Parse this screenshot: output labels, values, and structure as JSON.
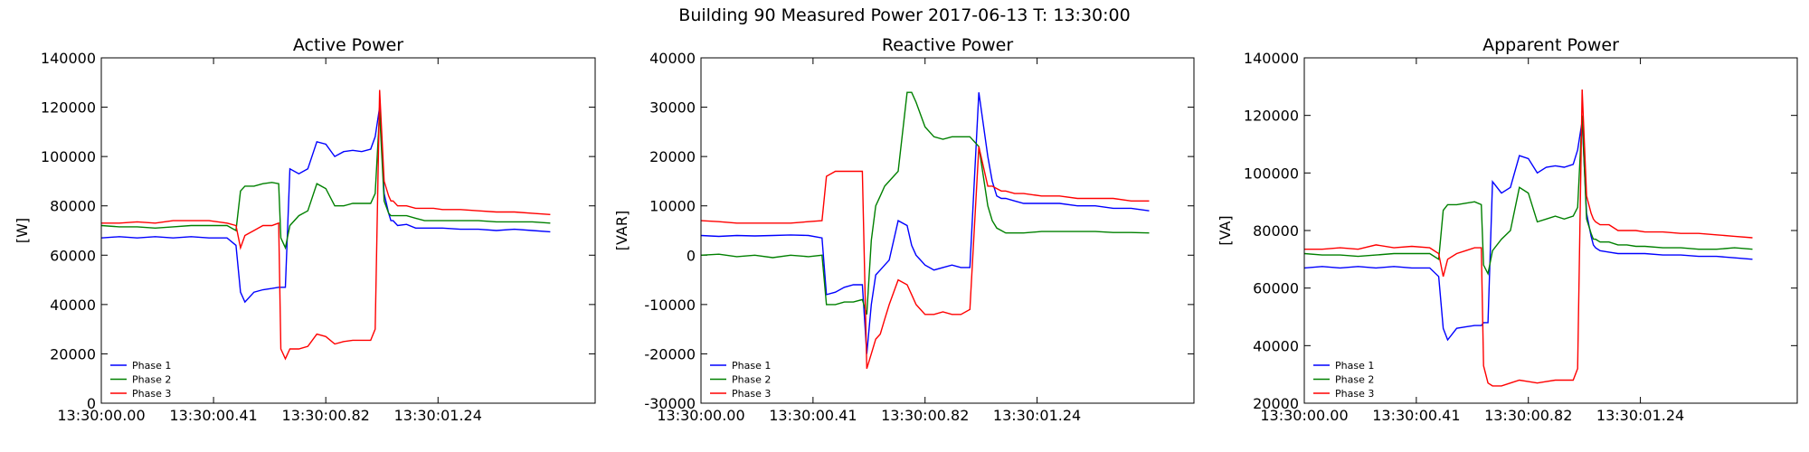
{
  "figure": {
    "title": "Building 90 Measured Power 2017-06-13 T: 13:30:00"
  },
  "chart_data": [
    {
      "type": "line",
      "title": "Active Power",
      "ylabel": "[W]",
      "xlabel": "",
      "ylim": [
        0,
        140000
      ],
      "yticks": [
        0,
        20000,
        40000,
        60000,
        80000,
        100000,
        120000,
        140000
      ],
      "xlim": [
        0,
        1.1
      ],
      "xticks": [
        0,
        0.25,
        0.5,
        0.75
      ],
      "xtick_labels": [
        "13:30:00.00",
        "13:30:00.41",
        "13:30:00.82",
        "13:30:01.24"
      ],
      "legend": "lower-left",
      "grid": false,
      "x": [
        0,
        0.04,
        0.08,
        0.12,
        0.16,
        0.2,
        0.24,
        0.28,
        0.3,
        0.31,
        0.32,
        0.34,
        0.36,
        0.38,
        0.395,
        0.4,
        0.41,
        0.42,
        0.44,
        0.46,
        0.48,
        0.5,
        0.52,
        0.54,
        0.56,
        0.58,
        0.6,
        0.61,
        0.62,
        0.63,
        0.64,
        0.645,
        0.65,
        0.66,
        0.68,
        0.7,
        0.72,
        0.74,
        0.76,
        0.8,
        0.84,
        0.88,
        0.92,
        0.96,
        1.0
      ],
      "series": [
        {
          "name": "Phase 1",
          "color": "#0000ff",
          "values": [
            67000,
            67500,
            67000,
            67500,
            67000,
            67500,
            67000,
            67000,
            64000,
            45000,
            41000,
            45000,
            46000,
            46500,
            47000,
            47000,
            47000,
            95000,
            93000,
            95000,
            106000,
            105000,
            100000,
            102000,
            102500,
            102000,
            103000,
            108000,
            120000,
            85000,
            77000,
            74000,
            74000,
            72000,
            72500,
            71000,
            71000,
            71000,
            71000,
            70500,
            70500,
            70000,
            70500,
            70000,
            69500
          ]
        },
        {
          "name": "Phase 2",
          "color": "#008000",
          "values": [
            72000,
            71500,
            71500,
            71000,
            71500,
            72000,
            72000,
            72000,
            70000,
            86000,
            88000,
            88000,
            89000,
            89500,
            89000,
            67000,
            63000,
            72000,
            76000,
            78000,
            89000,
            87000,
            80000,
            80000,
            81000,
            81000,
            81000,
            85000,
            118000,
            82000,
            77000,
            76000,
            76000,
            76000,
            76000,
            75000,
            74000,
            74000,
            74000,
            74000,
            74000,
            73500,
            73500,
            73500,
            73000
          ]
        },
        {
          "name": "Phase 3",
          "color": "#ff0000",
          "values": [
            73000,
            73000,
            73500,
            73000,
            74000,
            74000,
            74000,
            73000,
            72000,
            63000,
            68000,
            70000,
            72000,
            72000,
            73000,
            22000,
            18000,
            22000,
            22000,
            23000,
            28000,
            27000,
            24000,
            25000,
            25500,
            25500,
            25500,
            30000,
            127000,
            90000,
            84000,
            82000,
            82000,
            80000,
            80000,
            79000,
            79000,
            79000,
            78500,
            78500,
            78000,
            77500,
            77500,
            77000,
            76500
          ]
        }
      ]
    },
    {
      "type": "line",
      "title": "Reactive Power",
      "ylabel": "[VAR]",
      "xlabel": "",
      "ylim": [
        -30000,
        40000
      ],
      "yticks": [
        -30000,
        -20000,
        -10000,
        0,
        10000,
        20000,
        30000,
        40000
      ],
      "xlim": [
        0,
        1.1
      ],
      "xticks": [
        0,
        0.25,
        0.5,
        0.75
      ],
      "xtick_labels": [
        "13:30:00.00",
        "13:30:00.41",
        "13:30:00.82",
        "13:30:01.24"
      ],
      "legend": "lower-left",
      "grid": false,
      "x": [
        0,
        0.04,
        0.08,
        0.12,
        0.16,
        0.2,
        0.24,
        0.27,
        0.28,
        0.3,
        0.32,
        0.34,
        0.36,
        0.37,
        0.38,
        0.39,
        0.4,
        0.41,
        0.42,
        0.44,
        0.46,
        0.47,
        0.48,
        0.5,
        0.52,
        0.54,
        0.56,
        0.58,
        0.6,
        0.62,
        0.64,
        0.65,
        0.66,
        0.67,
        0.68,
        0.7,
        0.72,
        0.76,
        0.8,
        0.84,
        0.88,
        0.92,
        0.96,
        1.0
      ],
      "series": [
        {
          "name": "Phase 1",
          "color": "#0000ff",
          "values": [
            4000,
            3800,
            4000,
            3900,
            4000,
            4100,
            4000,
            3500,
            -8000,
            -7500,
            -6500,
            -6000,
            -6000,
            -20000,
            -10000,
            -4000,
            -3000,
            -2000,
            -1000,
            7000,
            6000,
            2000,
            0,
            -2000,
            -3000,
            -2500,
            -2000,
            -2500,
            -2500,
            33000,
            20000,
            15000,
            12000,
            11500,
            11500,
            11000,
            10500,
            10500,
            10500,
            10000,
            10000,
            9500,
            9500,
            9000
          ]
        },
        {
          "name": "Phase 2",
          "color": "#008000",
          "values": [
            0,
            200,
            -300,
            0,
            -500,
            0,
            -300,
            0,
            -10000,
            -10000,
            -9500,
            -9500,
            -9000,
            -12000,
            3000,
            10000,
            12000,
            14000,
            15000,
            17000,
            33000,
            33000,
            31000,
            26000,
            24000,
            23500,
            24000,
            24000,
            24000,
            22000,
            10000,
            7000,
            5500,
            5000,
            4500,
            4500,
            4500,
            4800,
            4800,
            4800,
            4800,
            4600,
            4600,
            4500
          ]
        },
        {
          "name": "Phase 3",
          "color": "#ff0000",
          "values": [
            7000,
            6800,
            6500,
            6500,
            6500,
            6500,
            6800,
            7000,
            16000,
            17000,
            17000,
            17000,
            17000,
            -23000,
            -20000,
            -17000,
            -16000,
            -13000,
            -10000,
            -5000,
            -6000,
            -8000,
            -10000,
            -12000,
            -12000,
            -11500,
            -12000,
            -12000,
            -11000,
            22000,
            14000,
            14000,
            13500,
            13000,
            13000,
            12500,
            12500,
            12000,
            12000,
            11500,
            11500,
            11500,
            11000,
            11000
          ]
        }
      ]
    },
    {
      "type": "line",
      "title": "Apparent Power",
      "ylabel": "[VA]",
      "xlabel": "",
      "ylim": [
        20000,
        140000
      ],
      "yticks": [
        20000,
        40000,
        60000,
        80000,
        100000,
        120000,
        140000
      ],
      "xlim": [
        0,
        1.1
      ],
      "xticks": [
        0,
        0.25,
        0.5,
        0.75
      ],
      "xtick_labels": [
        "13:30:00.00",
        "13:30:00.41",
        "13:30:00.82",
        "13:30:01.24"
      ],
      "legend": "lower-left",
      "grid": false,
      "x": [
        0,
        0.04,
        0.08,
        0.12,
        0.16,
        0.2,
        0.24,
        0.28,
        0.3,
        0.31,
        0.32,
        0.34,
        0.36,
        0.38,
        0.395,
        0.4,
        0.41,
        0.42,
        0.44,
        0.46,
        0.48,
        0.5,
        0.52,
        0.54,
        0.56,
        0.58,
        0.6,
        0.61,
        0.62,
        0.63,
        0.64,
        0.645,
        0.65,
        0.66,
        0.68,
        0.7,
        0.72,
        0.74,
        0.76,
        0.8,
        0.84,
        0.88,
        0.92,
        0.96,
        1.0
      ],
      "series": [
        {
          "name": "Phase 1",
          "color": "#0000ff",
          "values": [
            67000,
            67500,
            67000,
            67500,
            67000,
            67500,
            67000,
            67000,
            64000,
            46000,
            42000,
            46000,
            46500,
            47000,
            47000,
            48000,
            48000,
            97000,
            93000,
            95000,
            106000,
            105000,
            100000,
            102000,
            102500,
            102000,
            103000,
            108000,
            118000,
            86000,
            78000,
            75000,
            74000,
            73000,
            72500,
            72000,
            72000,
            72000,
            72000,
            71500,
            71500,
            71000,
            71000,
            70500,
            70000
          ]
        },
        {
          "name": "Phase 2",
          "color": "#008000",
          "values": [
            72000,
            71500,
            71500,
            71000,
            71500,
            72000,
            72000,
            72000,
            70000,
            87000,
            89000,
            89000,
            89500,
            90000,
            89000,
            68000,
            65000,
            73000,
            77000,
            80000,
            95000,
            93000,
            83000,
            84000,
            85000,
            84000,
            85000,
            88000,
            120000,
            84000,
            79000,
            77000,
            77000,
            76000,
            76000,
            75000,
            75000,
            74500,
            74500,
            74000,
            74000,
            73500,
            73500,
            74000,
            73500
          ]
        },
        {
          "name": "Phase 3",
          "color": "#ff0000",
          "values": [
            73500,
            73500,
            74000,
            73500,
            75000,
            74000,
            74500,
            74000,
            72000,
            64000,
            70000,
            72000,
            73000,
            74000,
            74000,
            33000,
            27000,
            26000,
            26000,
            27000,
            28000,
            27500,
            27000,
            27500,
            28000,
            28000,
            28000,
            32000,
            129000,
            92000,
            86000,
            84000,
            83000,
            82000,
            82000,
            80000,
            80000,
            80000,
            79500,
            79500,
            79000,
            79000,
            78500,
            78000,
            77500
          ]
        }
      ]
    }
  ]
}
